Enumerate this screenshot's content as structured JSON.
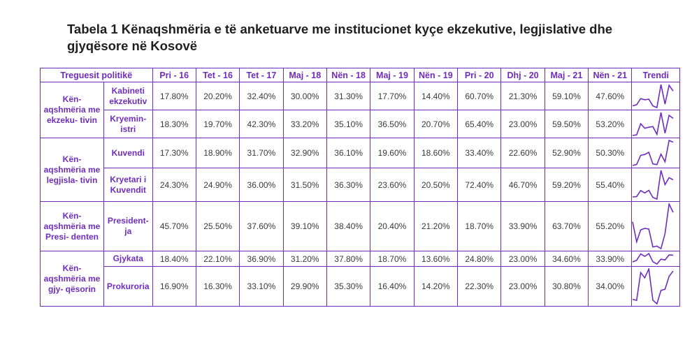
{
  "title": "Tabela 1 Kënaqshmëria e të anketuarve me institucionet kyçe ekzekutive, legjislative dhe gjyqësore në Kosovë",
  "header": {
    "indicator": "Treguesit politikë",
    "periods": [
      "Pri - 16",
      "Tet - 16",
      "Tet - 17",
      "Maj - 18",
      "Nën - 18",
      "Maj - 19",
      "Nën - 19",
      "Pri - 20",
      "Dhj - 20",
      "Maj - 21",
      "Nën - 21"
    ],
    "trend": "Trendi"
  },
  "groups": [
    {
      "label": "Kën- aqshmëria me ekzeku- tivin"
    },
    {
      "label": "Kën- aqshmëria me legjisla- tivin"
    },
    {
      "label": "Kën- aqshmëria me Presi- denten"
    },
    {
      "label": "Kën- aqshmëria me gjy- qësorin"
    }
  ],
  "rows": [
    {
      "label": "Kabineti ekzekutiv",
      "values": [
        "17.80%",
        "20.20%",
        "32.40%",
        "30.00%",
        "31.30%",
        "17.70%",
        "14.40%",
        "60.70%",
        "21.30%",
        "59.10%",
        "47.60%"
      ]
    },
    {
      "label": "Kryemin- istri",
      "values": [
        "18.30%",
        "19.70%",
        "42.30%",
        "33.20%",
        "35.10%",
        "36.50%",
        "20.70%",
        "65.40%",
        "23.00%",
        "59.50%",
        "53.20%"
      ]
    },
    {
      "label": "Kuvendi",
      "values": [
        "17.30%",
        "18.90%",
        "31.70%",
        "32.90%",
        "36.10%",
        "19.60%",
        "18.60%",
        "33.40%",
        "22.60%",
        "52.90%",
        "50.30%"
      ]
    },
    {
      "label": "Kryetari i Kuvendit",
      "values": [
        "24.30%",
        "24.90%",
        "36.00%",
        "31.50%",
        "36.30%",
        "23.60%",
        "20.50%",
        "72.40%",
        "46.70%",
        "59.20%",
        "55.40%"
      ]
    },
    {
      "label": "President- ja",
      "values": [
        "45.70%",
        "25.50%",
        "37.60%",
        "39.10%",
        "38.40%",
        "20.40%",
        "21.20%",
        "18.70%",
        "33.90%",
        "63.70%",
        "55.20%"
      ]
    },
    {
      "label": "Gjykata",
      "values": [
        "18.40%",
        "22.10%",
        "36.90%",
        "31.20%",
        "37.80%",
        "18.70%",
        "13.60%",
        "24.80%",
        "23.00%",
        "34.60%",
        "33.90%"
      ]
    },
    {
      "label": "Prokuroria",
      "values": [
        "16.90%",
        "16.30%",
        "33.10%",
        "29.90%",
        "35.30%",
        "16.40%",
        "14.20%",
        "22.30%",
        "23.00%",
        "30.80%",
        "34.00%"
      ]
    }
  ],
  "colors": {
    "accent": "#6f2dbd"
  }
}
